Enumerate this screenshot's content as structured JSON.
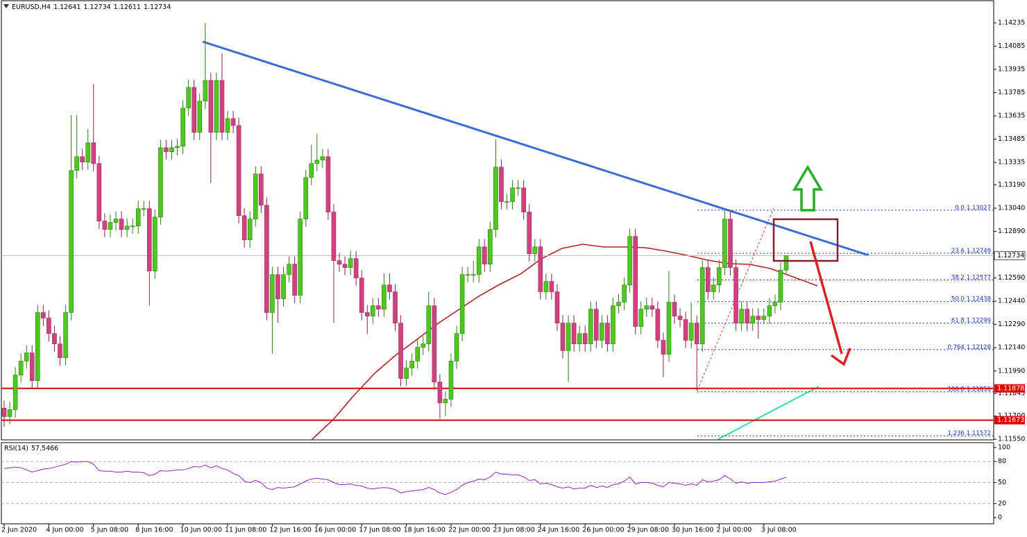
{
  "chart_data": {
    "type": "candlestick",
    "symbol": "EURUSD,H4",
    "categories": [
      "2 Jun 2020",
      null,
      null,
      null,
      null,
      null,
      null,
      null,
      "4 Jun 00:00",
      null,
      null,
      null,
      null,
      null,
      null,
      null,
      "5 Jun 08:00",
      null,
      null,
      null,
      null,
      null,
      null,
      null,
      "8 Jun 16:00",
      null,
      null,
      null,
      null,
      null,
      null,
      null,
      "10 Jun 00:00",
      null,
      null,
      null,
      null,
      null,
      null,
      null,
      "11 Jun 08:00",
      null,
      null,
      null,
      null,
      null,
      null,
      null,
      "12 Jun 16:00",
      null,
      null,
      null,
      null,
      null,
      null,
      null,
      "16 Jun 00:00",
      null,
      null,
      null,
      null,
      null,
      null,
      null,
      "17 Jun 08:00",
      null,
      null,
      null,
      null,
      null,
      null,
      null,
      "18 Jun 16:00",
      null,
      null,
      null,
      null,
      null,
      null,
      null,
      "22 Jun 00:00",
      null,
      null,
      null,
      null,
      null,
      null,
      null,
      "23 Jun 08:00",
      null,
      null,
      null,
      null,
      null,
      null,
      null,
      "24 Jun 16:00",
      null,
      null,
      null,
      null,
      null,
      null,
      null,
      "26 Jun 00:00",
      null,
      null,
      null,
      null,
      null,
      null,
      null,
      "29 Jun 08:00",
      null,
      null,
      null,
      null,
      null,
      null,
      null,
      "30 Jun 16:00",
      null,
      null,
      null,
      null,
      null,
      null,
      null,
      "2 Jul 00:00",
      null,
      null,
      null,
      null,
      null,
      null,
      null,
      "3 Jul 08:00",
      null,
      null,
      null,
      null
    ],
    "open": [
      1.1175,
      1.11696,
      1.11741,
      1.11964,
      1.12054,
      1.12107,
      1.11928,
      1.12367,
      1.12331,
      1.12232,
      1.12165,
      1.12076,
      1.12367,
      1.13283,
      1.13372,
      1.13337,
      1.13462,
      1.13328,
      1.12957,
      1.12903,
      1.12948,
      1.1297,
      1.12903,
      1.12925,
      1.12925,
      1.13037,
      1.13037,
      1.12635,
      1.12983,
      1.1343,
      1.13404,
      1.1343,
      1.13439,
      1.13685,
      1.13819,
      1.13529,
      1.1373,
      1.13864,
      1.13529,
      1.13864,
      1.13529,
      1.13618,
      1.13573,
      1.12992,
      1.12836,
      1.1297,
      1.13261,
      1.13059,
      1.12367,
      1.12612,
      1.12456,
      1.12612,
      1.12679,
      1.12478,
      1.1297,
      1.13238,
      1.13328,
      1.1335,
      1.13372,
      1.13015,
      1.12702,
      1.12679,
      1.12657,
      1.12715,
      1.1259,
      1.12367,
      1.12344,
      1.12411,
      1.12389,
      1.12545,
      1.12501,
      1.12299,
      1.11942,
      1.12009,
      1.12054,
      1.12143,
      1.12165,
      1.12411,
      1.11919,
      1.11785,
      1.11808,
      1.12054,
      1.12232,
      1.12612,
      1.12612,
      1.12612,
      1.12791,
      1.12679,
      1.12903,
      1.13305,
      1.13082,
      1.13082,
      1.13171,
      1.13171,
      1.13015,
      1.12746,
      1.12791,
      1.12501,
      1.12568,
      1.12501,
      1.12299,
      1.12121,
      1.12299,
      1.12165,
      1.12232,
      1.12165,
      1.12389,
      1.12188,
      1.12299,
      1.12165,
      1.12411,
      1.12434,
      1.12545,
      1.12858,
      1.12277,
      1.12389,
      1.12411,
      1.12389,
      1.12188,
      1.12098,
      1.12434,
      1.12344,
      1.12322,
      1.12188,
      1.12299,
      1.12165,
      1.12657,
      1.12501,
      1.12545,
      1.12657,
      1.1297,
      1.12657,
      1.12299,
      1.12389,
      1.12299,
      1.12344,
      1.12322,
      1.12344,
      1.12411,
      1.12434,
      1.12641
    ],
    "high": [
      1.118,
      1.11791,
      1.12014,
      1.12104,
      1.12157,
      1.12157,
      1.12417,
      1.12417,
      1.12381,
      1.12282,
      1.12215,
      1.12417,
      1.1364,
      1.1364,
      1.13422,
      1.1355,
      1.1384,
      1.13378,
      1.13007,
      1.12998,
      1.1302,
      1.1302,
      1.12975,
      1.12975,
      1.13087,
      1.13087,
      1.13087,
      1.13033,
      1.1348,
      1.1348,
      1.1348,
      1.13489,
      1.13735,
      1.13869,
      1.13869,
      1.1378,
      1.14235,
      1.13914,
      1.13914,
      1.1404,
      1.13668,
      1.13668,
      1.13623,
      1.13042,
      1.1302,
      1.13311,
      1.13311,
      1.13109,
      1.12662,
      1.12662,
      1.12662,
      1.12729,
      1.12729,
      1.1302,
      1.13288,
      1.1345,
      1.1352,
      1.13422,
      1.13422,
      1.13065,
      1.12752,
      1.12729,
      1.12765,
      1.12765,
      1.1264,
      1.12417,
      1.12461,
      1.12461,
      1.1262,
      1.1262,
      1.12551,
      1.12349,
      1.12059,
      1.12104,
      1.12193,
      1.12215,
      1.125,
      1.12461,
      1.11969,
      1.11858,
      1.12104,
      1.12282,
      1.12662,
      1.12662,
      1.127,
      1.12841,
      1.12841,
      1.12953,
      1.13485,
      1.13355,
      1.13132,
      1.13221,
      1.13221,
      1.13221,
      1.13065,
      1.12841,
      1.12841,
      1.12618,
      1.12618,
      1.12551,
      1.12349,
      1.12349,
      1.12349,
      1.12282,
      1.12282,
      1.12439,
      1.12439,
      1.12349,
      1.12349,
      1.12461,
      1.12484,
      1.12595,
      1.12908,
      1.12908,
      1.12439,
      1.12461,
      1.12461,
      1.12439,
      1.12238,
      1.12635,
      1.12484,
      1.12394,
      1.12372,
      1.12434,
      1.12349,
      1.12707,
      1.12707,
      1.12595,
      1.12707,
      1.13027,
      1.1302,
      1.12707,
      1.12439,
      1.12439,
      1.12394,
      1.12394,
      1.12394,
      1.12461,
      1.12484,
      1.12691,
      1.12734
    ],
    "low": [
      1.1163,
      1.11646,
      1.11691,
      1.11914,
      1.12004,
      1.11878,
      1.11878,
      1.12281,
      1.12182,
      1.12115,
      1.12026,
      1.12026,
      1.12317,
      1.13233,
      1.13287,
      1.13287,
      1.13278,
      1.12907,
      1.12853,
      1.12853,
      1.12898,
      1.12853,
      1.12853,
      1.12875,
      1.12875,
      1.12987,
      1.12411,
      1.12585,
      1.12933,
      1.13354,
      1.13354,
      1.1338,
      1.13389,
      1.13635,
      1.13479,
      1.13479,
      1.1368,
      1.132,
      1.13479,
      1.13479,
      1.13479,
      1.13523,
      1.12942,
      1.12786,
      1.12786,
      1.1292,
      1.13009,
      1.12317,
      1.121,
      1.123,
      1.12406,
      1.12562,
      1.12428,
      1.12428,
      1.1292,
      1.13188,
      1.13278,
      1.133,
      1.12965,
      1.123,
      1.12629,
      1.12607,
      1.12607,
      1.1254,
      1.12317,
      1.1223,
      1.12294,
      1.12339,
      1.12339,
      1.12451,
      1.12249,
      1.11892,
      1.11892,
      1.11959,
      1.12004,
      1.12093,
      1.12115,
      1.11869,
      1.11683,
      1.117,
      1.11758,
      1.12004,
      1.12182,
      1.12562,
      1.12562,
      1.12562,
      1.12629,
      1.12629,
      1.12853,
      1.13032,
      1.13032,
      1.13032,
      1.13121,
      1.12965,
      1.12696,
      1.12696,
      1.12451,
      1.12451,
      1.12451,
      1.12249,
      1.12071,
      1.11919,
      1.12115,
      1.12115,
      1.12115,
      1.12115,
      1.12138,
      1.12138,
      1.12115,
      1.12115,
      1.12361,
      1.12384,
      1.12495,
      1.12227,
      1.12227,
      1.12339,
      1.12339,
      1.12138,
      1.1195,
      1.12048,
      1.12294,
      1.12272,
      1.12138,
      1.12138,
      1.11861,
      1.12115,
      1.12451,
      1.12451,
      1.12495,
      1.12607,
      1.12607,
      1.12249,
      1.12249,
      1.12249,
      1.12249,
      1.122,
      1.12294,
      1.12294,
      1.12361,
      1.12384,
      1.12611
    ],
    "close": [
      1.11696,
      1.11741,
      1.11964,
      1.12054,
      1.12107,
      1.11928,
      1.12367,
      1.12331,
      1.12232,
      1.12165,
      1.12076,
      1.12367,
      1.13283,
      1.13372,
      1.13337,
      1.13462,
      1.13328,
      1.12957,
      1.12903,
      1.12948,
      1.1297,
      1.12903,
      1.12925,
      1.12925,
      1.13037,
      1.13037,
      1.12635,
      1.12983,
      1.1343,
      1.13404,
      1.1343,
      1.13439,
      1.13685,
      1.13819,
      1.13529,
      1.1373,
      1.13864,
      1.13529,
      1.13864,
      1.13529,
      1.13618,
      1.13573,
      1.12992,
      1.12836,
      1.1297,
      1.13261,
      1.13059,
      1.12367,
      1.12612,
      1.12456,
      1.12612,
      1.12679,
      1.12478,
      1.1297,
      1.13238,
      1.13328,
      1.1335,
      1.13372,
      1.13015,
      1.12702,
      1.12679,
      1.12657,
      1.12715,
      1.1259,
      1.12367,
      1.12344,
      1.12411,
      1.12389,
      1.12545,
      1.12501,
      1.12299,
      1.11942,
      1.12009,
      1.12054,
      1.12143,
      1.12165,
      1.12411,
      1.11919,
      1.11785,
      1.11808,
      1.12054,
      1.12232,
      1.12612,
      1.12612,
      1.12612,
      1.12791,
      1.12679,
      1.12903,
      1.13305,
      1.13082,
      1.13082,
      1.13171,
      1.13171,
      1.13015,
      1.12746,
      1.12791,
      1.12501,
      1.12568,
      1.12501,
      1.12299,
      1.12121,
      1.12299,
      1.12165,
      1.12232,
      1.12165,
      1.12389,
      1.12188,
      1.12299,
      1.12165,
      1.12411,
      1.12434,
      1.12545,
      1.12858,
      1.12277,
      1.12389,
      1.12411,
      1.12389,
      1.12188,
      1.12098,
      1.12434,
      1.12344,
      1.12322,
      1.12188,
      1.12299,
      1.12165,
      1.12657,
      1.12501,
      1.12545,
      1.12657,
      1.1297,
      1.12657,
      1.12299,
      1.12389,
      1.12299,
      1.12344,
      1.12322,
      1.12344,
      1.12411,
      1.12434,
      1.12641,
      1.12734
    ],
    "up_color": "#4cc81e",
    "down_color": "#d0417f",
    "ylim": [
      1.11546,
      1.14378
    ],
    "yticks": [
      1.14235,
      1.14085,
      1.13935,
      1.13785,
      1.13635,
      1.13485,
      1.13335,
      {
        "value": 1.1319,
        "label": "1.13190"
      },
      {
        "value": 1.1304,
        "label": "1.13040"
      },
      {
        "value": 1.1289,
        "label": "1.12890"
      },
      {
        "value": 1.1259,
        "label": "1.12590"
      },
      {
        "value": 1.1244,
        "label": "1.12440"
      },
      {
        "value": 1.1229,
        "label": "1.12290"
      },
      {
        "value": 1.1214,
        "label": "1.12140"
      },
      {
        "value": 1.1199,
        "label": "1.11990"
      },
      1.11845,
      {
        "value": 1.117,
        "label": "1.11700"
      },
      {
        "value": 1.1155,
        "label": "1.11550"
      }
    ],
    "hlines": [
      {
        "value": 1.11878,
        "color": "#e00000"
      },
      {
        "value": 1.11673,
        "color": "#e00000"
      }
    ],
    "fib": {
      "color": "#1a2ec8",
      "levels": [
        {
          "ratio": "0.0",
          "price": 1.13027
        },
        {
          "ratio": "23.6",
          "price": 1.12749
        },
        {
          "ratio": "38.2",
          "price": 1.12577
        },
        {
          "ratio": "50.0",
          "price": 1.12438
        },
        {
          "ratio": "61.8",
          "price": 1.12299
        },
        {
          "ratio": "0.764",
          "price": 1.12128
        },
        {
          "ratio": "100.0",
          "price": 1.11856
        },
        {
          "ratio": "1.236",
          "price": 1.11572
        }
      ]
    },
    "rsi": {
      "name": "RSI(14)",
      "color": "#9b1fc6",
      "ylim": [
        0,
        100
      ],
      "yticks": [
        100,
        80,
        50,
        20,
        0
      ],
      "values": [
        70,
        71,
        72,
        71,
        68,
        65,
        67,
        69,
        70,
        72,
        74,
        76,
        80,
        79,
        80,
        80,
        76,
        67,
        66,
        66,
        65,
        65,
        66,
        65,
        65,
        64,
        60,
        62,
        67,
        66,
        67,
        68,
        68,
        70,
        73,
        72,
        75,
        71,
        74,
        70,
        68,
        63,
        60,
        52,
        50,
        53,
        50,
        42,
        40,
        43,
        42,
        43,
        44,
        48,
        52,
        55,
        56,
        55,
        54,
        50,
        47,
        47,
        48,
        46,
        45,
        42,
        41,
        42,
        43,
        42,
        40,
        35,
        37,
        38,
        39,
        40,
        43,
        40,
        35,
        33,
        36,
        40,
        46,
        50,
        52,
        55,
        54,
        58,
        65,
        62,
        62,
        61,
        61,
        58,
        53,
        54,
        48,
        49,
        47,
        44,
        42,
        44,
        41,
        42,
        42,
        46,
        43,
        45,
        43,
        47,
        48,
        52,
        58,
        48,
        50,
        50,
        49,
        46,
        44,
        50,
        49,
        48,
        46,
        48,
        46,
        54,
        51,
        52,
        54,
        60,
        55,
        49,
        51,
        49,
        50,
        50,
        50,
        51,
        52,
        55,
        57.5466
      ]
    }
  }
}
